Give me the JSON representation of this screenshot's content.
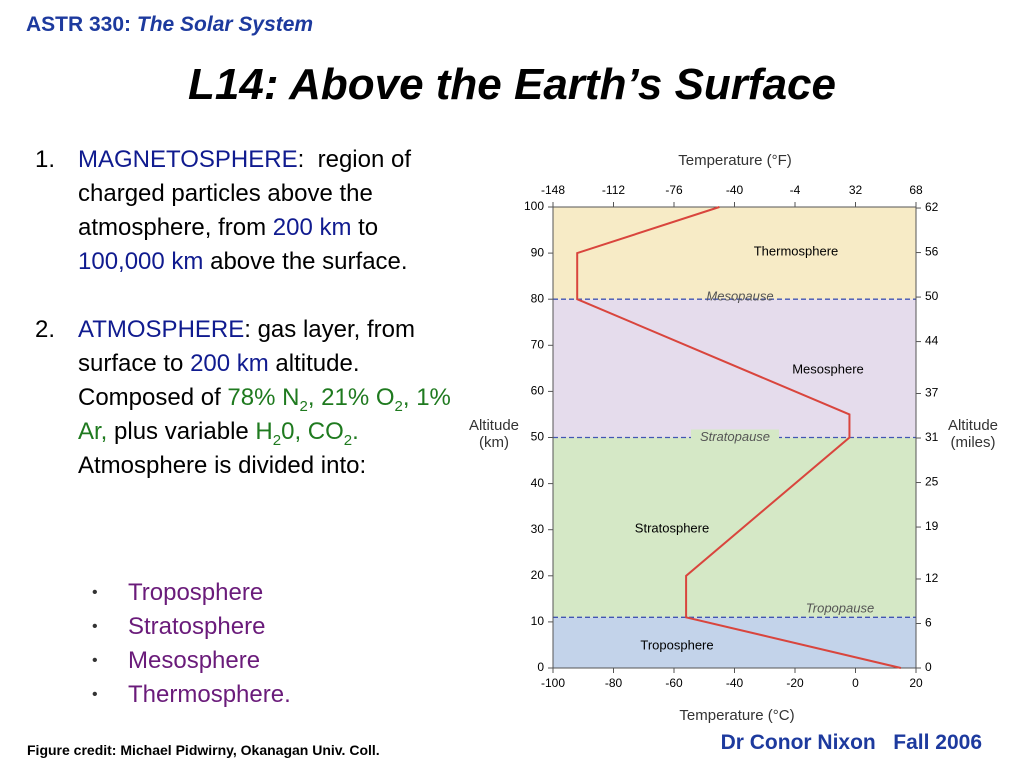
{
  "header": {
    "course": "ASTR 330:",
    "course_title": "The Solar System",
    "title": "L14: Above the Earth’s Surface"
  },
  "list": [
    {
      "marker": "1.",
      "runs": [
        {
          "text": "MAGNETOSPHERE",
          "color": "#101b8f"
        },
        {
          "text": ":  region of charged particles above the atmosphere, from ",
          "color": "#000000"
        },
        {
          "text": "200 km",
          "color": "#101b8f"
        },
        {
          "text": " to ",
          "color": "#000000"
        },
        {
          "text": "100,000 km",
          "color": "#101b8f"
        },
        {
          "text": " above the surface.",
          "color": "#000000"
        }
      ]
    },
    {
      "marker": "2.",
      "runs": [
        {
          "text": "ATMOSPHERE",
          "color": "#101b8f"
        },
        {
          "text": ": gas layer, from surface to ",
          "color": "#000000"
        },
        {
          "text": "200 km",
          "color": "#101b8f"
        },
        {
          "text": " altitude. Composed of ",
          "color": "#000000"
        },
        {
          "text": "78% N",
          "color": "#1f7a1f"
        },
        {
          "text": "2",
          "color": "#1f7a1f",
          "sub": true
        },
        {
          "text": ", 21% O",
          "color": "#1f7a1f"
        },
        {
          "text": "2",
          "color": "#1f7a1f",
          "sub": true
        },
        {
          "text": ", 1% Ar,",
          "color": "#1f7a1f"
        },
        {
          "text": " plus variable ",
          "color": "#000000"
        },
        {
          "text": "H",
          "color": "#1f7a1f"
        },
        {
          "text": "2",
          "color": "#1f7a1f",
          "sub": true
        },
        {
          "text": "0, CO",
          "color": "#1f7a1f"
        },
        {
          "text": "2",
          "color": "#1f7a1f",
          "sub": true
        },
        {
          "text": ".",
          "color": "#1f7a1f"
        },
        {
          "text": " Atmosphere is divided into:",
          "color": "#000000"
        }
      ]
    }
  ],
  "bullets": [
    "Troposphere",
    "Stratosphere",
    "Mesosphere",
    "Thermosphere."
  ],
  "footer": {
    "credit": "Figure credit: Michael Pidwirny, Okanagan Univ. Coll.",
    "author": "Dr Conor Nixon",
    "term": "Fall 2006"
  },
  "chart_data": {
    "type": "line",
    "x_label": "Temperature (°C)",
    "x2_label": "Temperature (°F)",
    "y_label": [
      "Altitude",
      "(km)"
    ],
    "y2_label": [
      "Altitude",
      "(miles)"
    ],
    "x": [
      15,
      -56,
      -56,
      -2,
      -2,
      -92,
      -92,
      -45
    ],
    "y": [
      0,
      11,
      20,
      50,
      55,
      80,
      90,
      100
    ],
    "color": "#d9453d",
    "xlim": [
      -100,
      20
    ],
    "xticks": [
      -100,
      -80,
      -60,
      -40,
      -20,
      0,
      20
    ],
    "x2lim": [
      -148,
      68
    ],
    "x2ticks": [
      -148,
      -112,
      -76,
      -40,
      -4,
      32,
      68
    ],
    "ylim": [
      0,
      100
    ],
    "yticks": [
      0,
      10,
      20,
      30,
      40,
      50,
      60,
      70,
      80,
      90,
      100
    ],
    "y2lim": [
      0,
      62.14
    ],
    "y2ticks": [
      0,
      6,
      12,
      19,
      25,
      31,
      37,
      44,
      50,
      56,
      62
    ],
    "layers": [
      {
        "name": "Troposphere",
        "range": [
          0,
          11
        ],
        "color": "#c3d3ea"
      },
      {
        "name": "Stratosphere",
        "range": [
          11,
          50
        ],
        "color": "#d5e8c6"
      },
      {
        "name": "Mesosphere",
        "range": [
          50,
          80
        ],
        "color": "#e5dcec"
      },
      {
        "name": "Thermosphere",
        "range": [
          80,
          100
        ],
        "color": "#f7ebc6"
      }
    ],
    "boundaries": [
      {
        "label": "Tropopause",
        "value": 11
      },
      {
        "label": "Stratopause",
        "value": 50
      },
      {
        "label": "Mesopause",
        "value": 80
      }
    ]
  }
}
